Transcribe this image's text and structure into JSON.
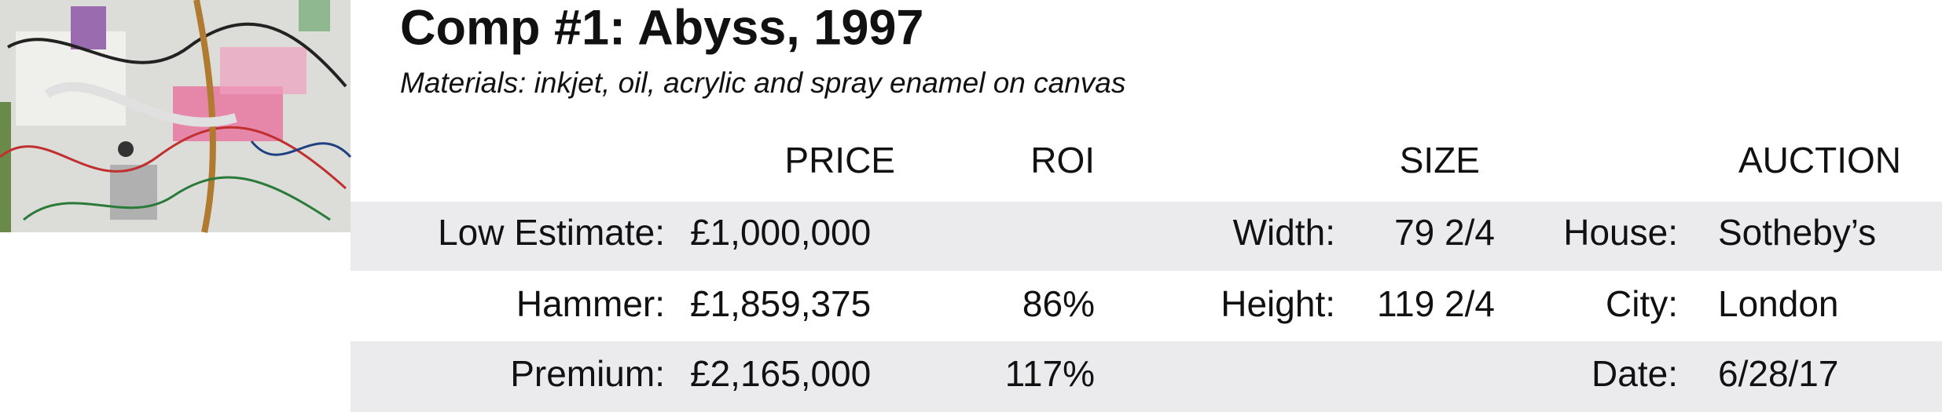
{
  "header": {
    "title": "Comp #1: Abyss, 1997",
    "materials": "Materials: inkjet, oil, acrylic and spray enamel on canvas"
  },
  "table": {
    "columns": [
      "PRICE",
      "ROI",
      "SIZE",
      "AUCTION"
    ],
    "rows": [
      {
        "price_label": "Low Estimate:",
        "price": "£1,000,000",
        "size_label": "Width:",
        "size": "79 2/4",
        "auction_label": "House:",
        "auction": "Sotheby’s"
      },
      {
        "price_label": "Hammer:",
        "price": "£1,859,375",
        "roi": "86%",
        "size_label": "Height:",
        "size": "119 2/4",
        "auction_label": "City:",
        "auction": "London"
      },
      {
        "price_label": "Premium:",
        "price": "£2,165,000",
        "roi": "117%",
        "auction_label": "Date:",
        "auction": "6/28/17"
      }
    ]
  }
}
